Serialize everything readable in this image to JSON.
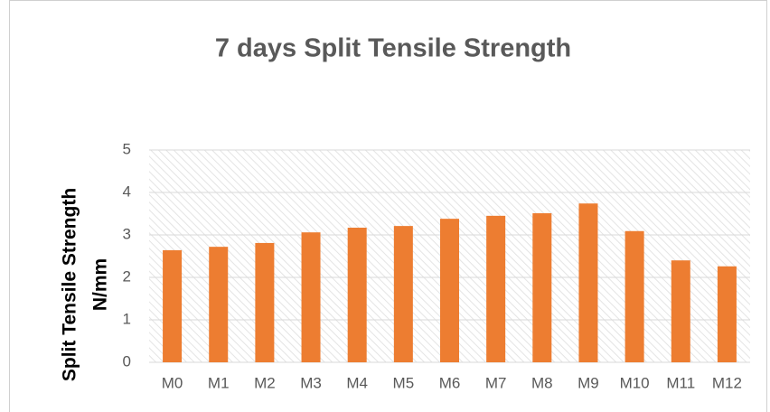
{
  "chart_data": {
    "type": "bar",
    "title": "7 days Split Tensile  Strength",
    "ylabel": [
      "Split Tensile  Strength",
      "N/mm"
    ],
    "categories": [
      "M0",
      "M1",
      "M2",
      "M3",
      "M4",
      "M5",
      "M6",
      "M7",
      "M8",
      "M9",
      "M10",
      "M11",
      "M12"
    ],
    "values": [
      2.64,
      2.72,
      2.81,
      3.06,
      3.17,
      3.21,
      3.38,
      3.45,
      3.51,
      3.74,
      3.09,
      2.4,
      2.26
    ],
    "color": "#ed7d31",
    "ylim": [
      0,
      5
    ],
    "yticks": [
      0,
      1,
      2,
      3,
      4,
      5
    ],
    "grid": true
  }
}
